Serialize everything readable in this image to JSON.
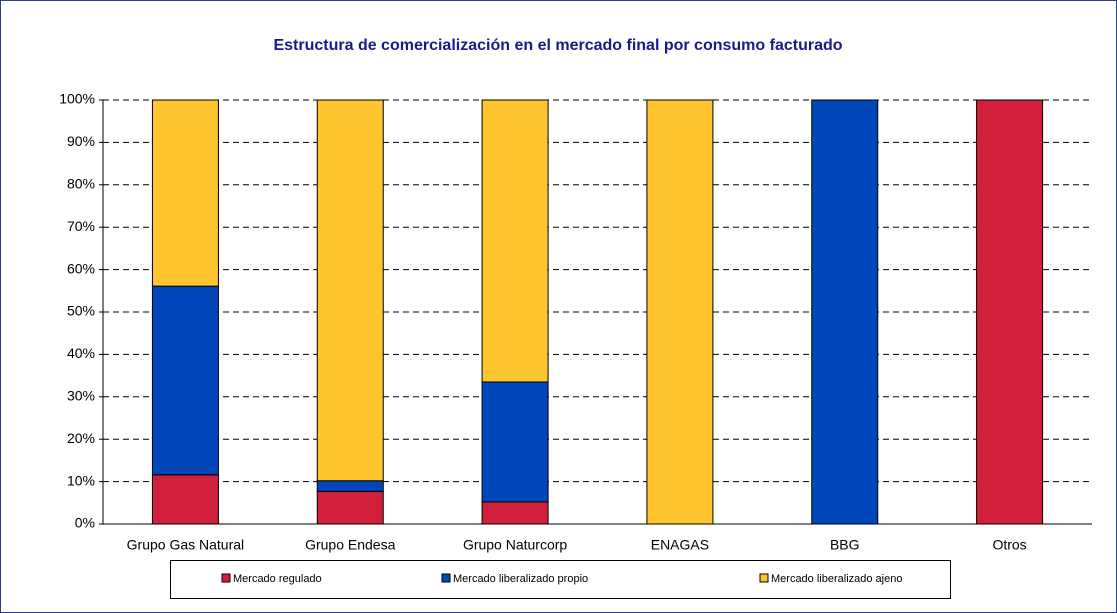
{
  "chart_data": {
    "type": "stacked_bar_100",
    "title": "Estructura de comercialización en el mercado final por consumo facturado",
    "categories": [
      "Grupo Gas Natural",
      "Grupo Endesa",
      "Grupo Naturcorp",
      "ENAGAS",
      "BBG",
      "Otros"
    ],
    "series": [
      {
        "name": "Mercado regulado",
        "color": "#d21f3c",
        "values": [
          11.6,
          7.7,
          5.2,
          0,
          0,
          100
        ]
      },
      {
        "name": "Mercado liberalizado propio",
        "color": "#0047bb",
        "values": [
          44.5,
          2.5,
          28.3,
          0,
          100,
          0
        ]
      },
      {
        "name": "Mercado liberalizado ajeno",
        "color": "#ffc52f",
        "values": [
          43.9,
          89.8,
          66.5,
          100,
          0,
          0
        ]
      }
    ],
    "ylim": [
      0,
      100
    ],
    "yticks": [
      {
        "value": 0,
        "label": "0%"
      },
      {
        "value": 10,
        "label": "10%"
      },
      {
        "value": 20,
        "label": "20%"
      },
      {
        "value": 30,
        "label": "30%"
      },
      {
        "value": 40,
        "label": "40%"
      },
      {
        "value": 50,
        "label": "50%"
      },
      {
        "value": 60,
        "label": "60%"
      },
      {
        "value": 70,
        "label": "70%"
      },
      {
        "value": 80,
        "label": "80%"
      },
      {
        "value": 90,
        "label": "90%"
      },
      {
        "value": 100,
        "label": "100%"
      }
    ],
    "grid": true
  }
}
